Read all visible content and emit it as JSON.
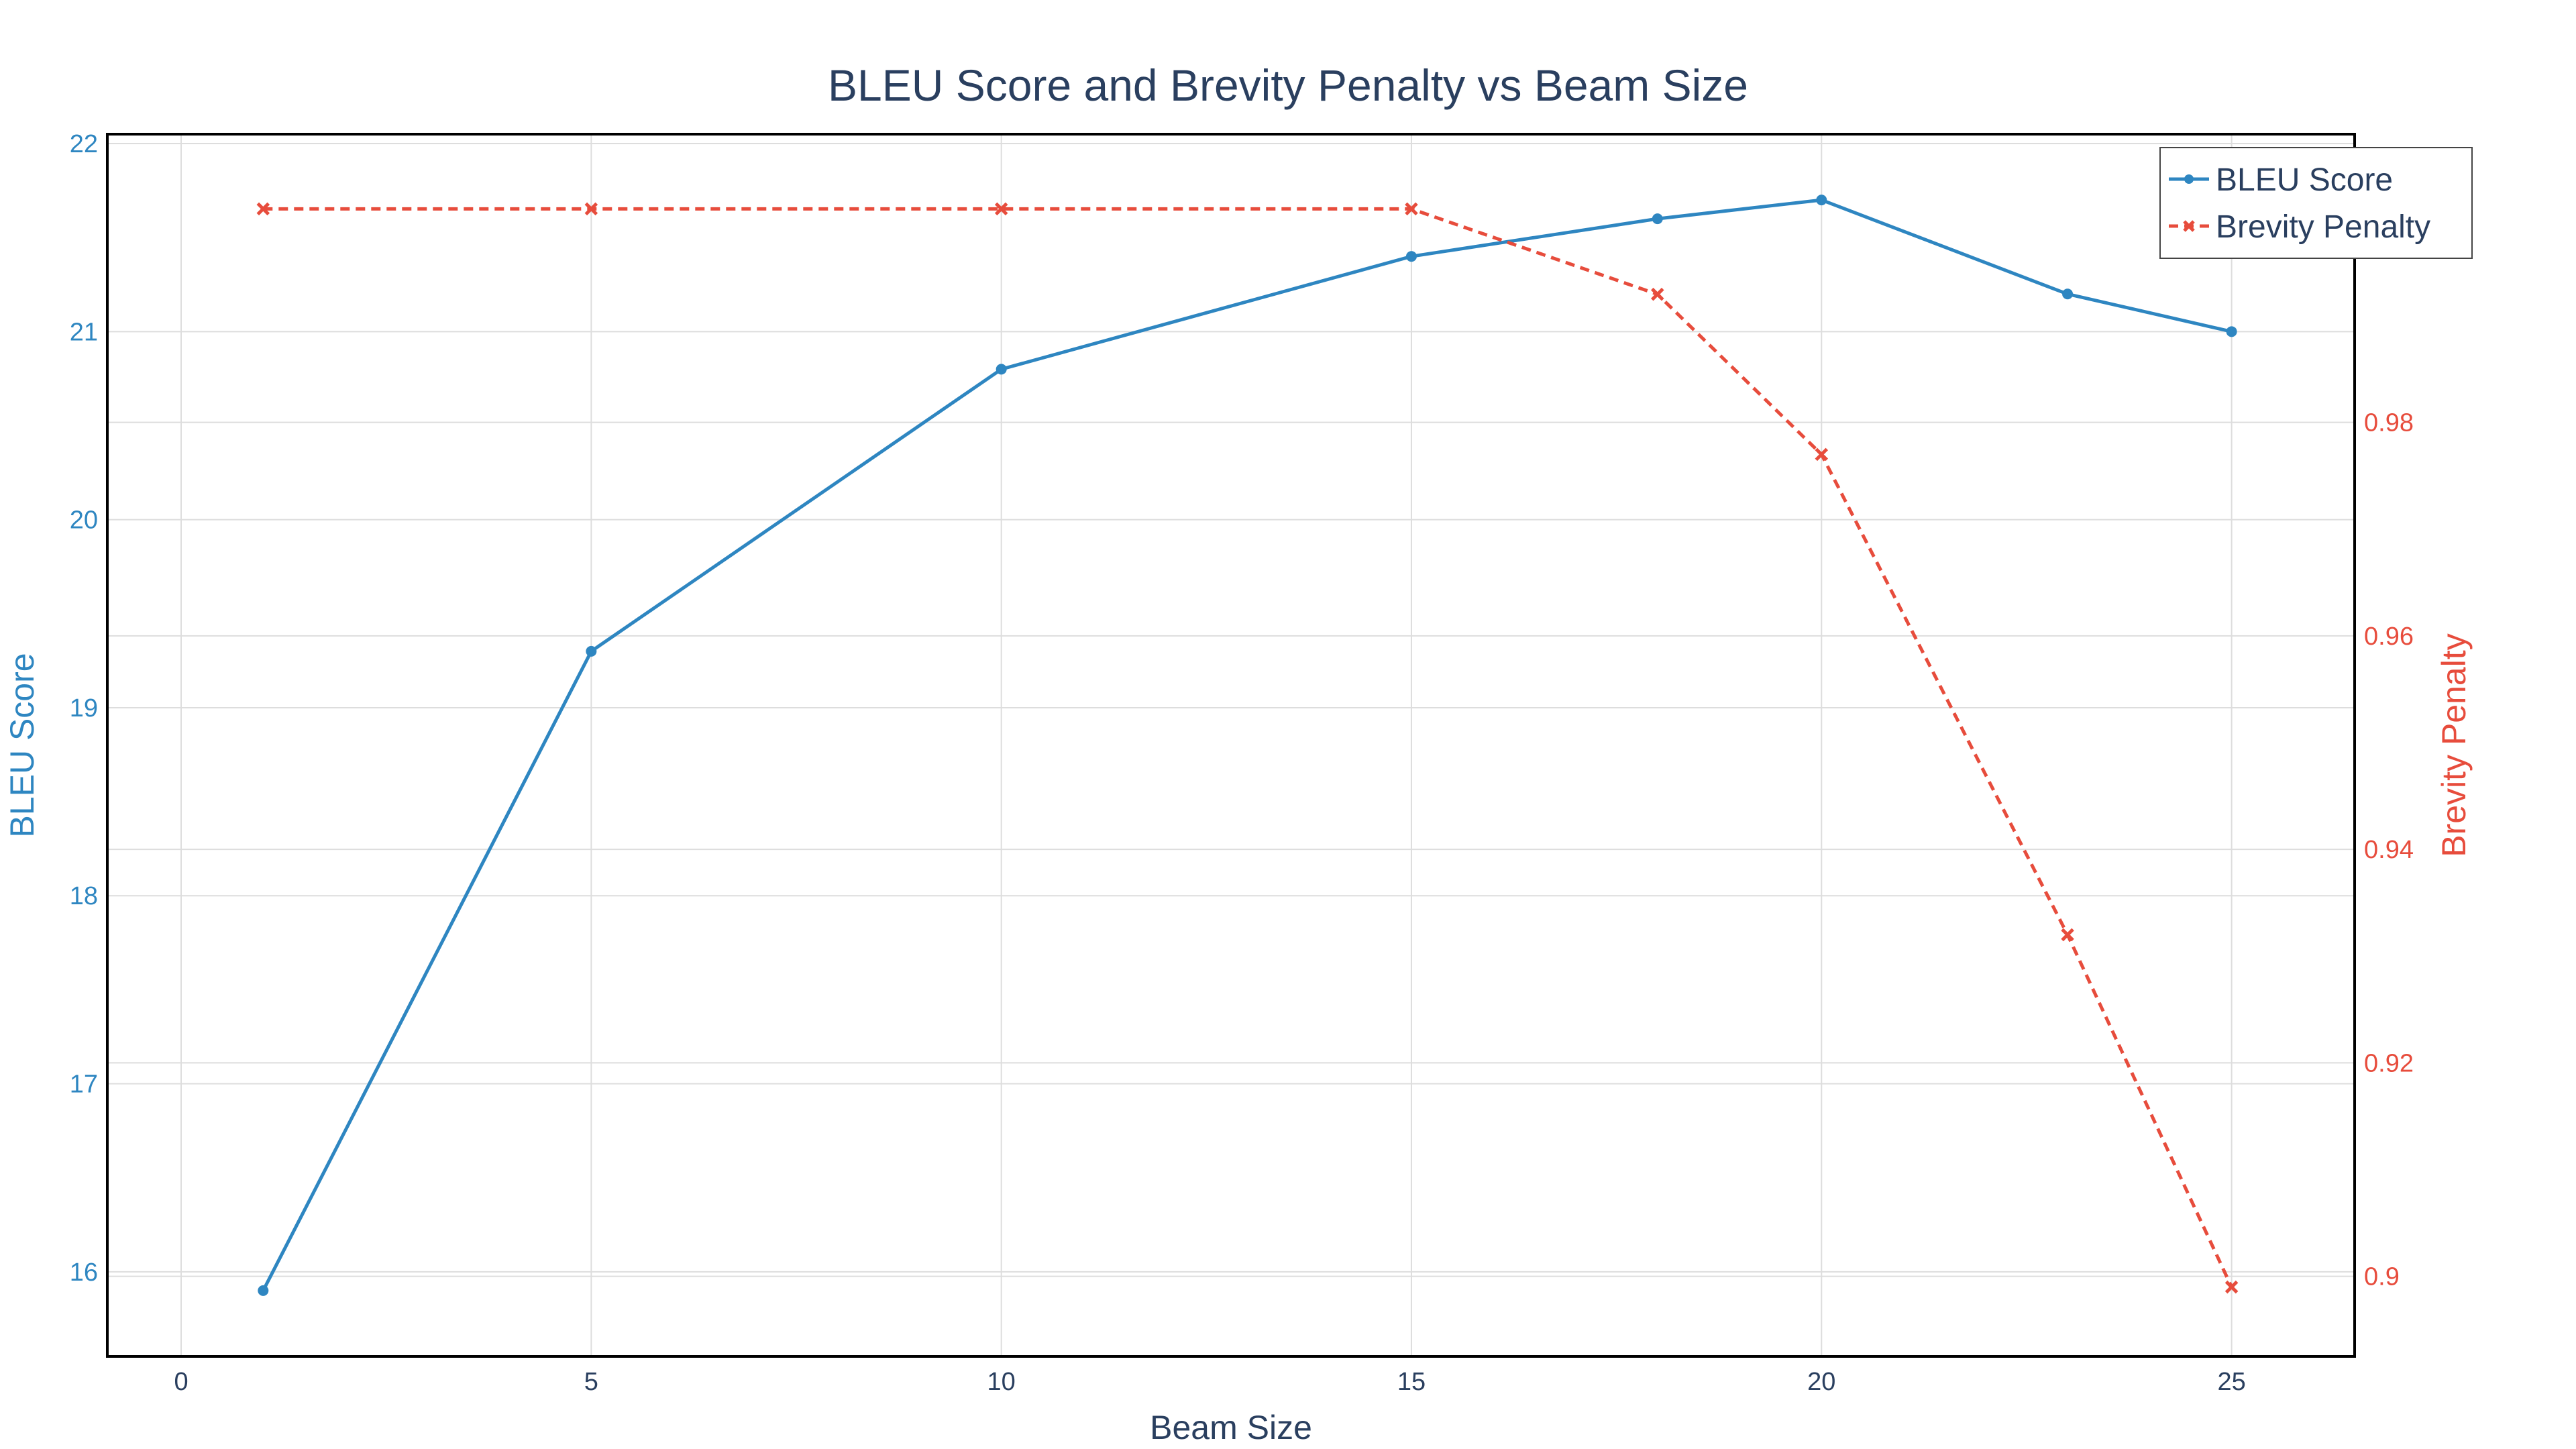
{
  "chart_data": {
    "type": "line",
    "title": "BLEU Score and Brevity Penalty vs Beam Size",
    "xlabel": "Beam Size",
    "ylabel": "BLEU Score",
    "y2label": "Brevity Penalty",
    "xlim": [
      -0.9,
      26.5
    ],
    "ylim": [
      15.55,
      22.05
    ],
    "y2lim": [
      0.8925,
      1.007
    ],
    "x_ticks": [
      0,
      5,
      10,
      15,
      20,
      25
    ],
    "y_ticks": [
      16,
      17,
      18,
      19,
      20,
      21,
      22
    ],
    "y2_ticks": [
      0.9,
      0.92,
      0.94,
      0.96,
      0.98
    ],
    "y2_tick_labels": [
      "0.9",
      "0.92",
      "0.94",
      "0.96",
      "0.98"
    ],
    "grid": true,
    "legend_position": "top-right",
    "x": [
      1,
      5,
      10,
      15,
      18,
      20,
      23,
      25
    ],
    "series": [
      {
        "name": "BLEU Score",
        "axis": "left",
        "color": "#2e86c1",
        "dash": "solid",
        "marker": "circle",
        "values": [
          15.9,
          19.3,
          20.8,
          21.4,
          21.6,
          21.7,
          21.2,
          21.0
        ]
      },
      {
        "name": "Brevity Penalty",
        "axis": "right",
        "color": "#e74c3c",
        "dash": "dash",
        "marker": "x",
        "values": [
          1.0,
          1.0,
          1.0,
          1.0,
          0.992,
          0.977,
          0.932,
          0.899
        ]
      }
    ]
  }
}
